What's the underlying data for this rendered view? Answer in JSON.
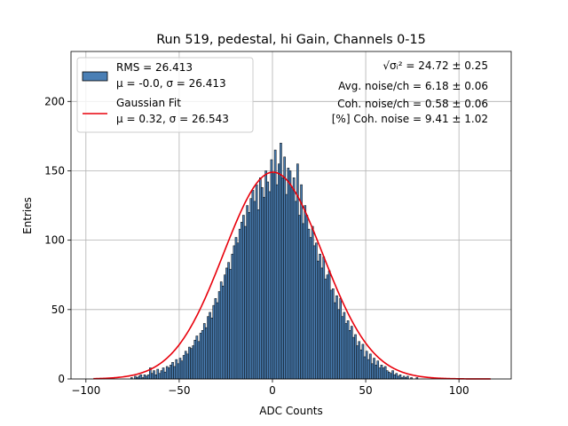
{
  "chart_data": {
    "type": "bar",
    "title": "Run 519, pedestal, hi Gain, Channels 0-15",
    "xlabel": "ADC Counts",
    "ylabel": "Entries",
    "xlim": [
      -108,
      128
    ],
    "ylim": [
      0,
      236
    ],
    "xticks": [
      -100,
      -50,
      0,
      50,
      100
    ],
    "yticks": [
      0,
      50,
      100,
      150,
      200
    ],
    "xtick_labels": [
      "−100",
      "−50",
      "0",
      "50",
      "100"
    ],
    "ytick_labels": [
      "0",
      "50",
      "100",
      "150",
      "200"
    ],
    "grid": true,
    "legend_position": "upper left",
    "bar_color": "#4a7fb5",
    "fit_color": "#e8000b",
    "bins": {
      "start": -96,
      "width": 1,
      "counts": [
        0,
        0,
        0,
        0,
        0,
        0,
        0,
        0,
        0,
        0,
        0,
        0,
        0,
        0,
        0,
        0,
        0,
        0,
        0,
        0,
        1,
        0,
        2,
        1,
        2,
        3,
        1,
        3,
        2,
        3,
        8,
        4,
        6,
        3,
        7,
        4,
        6,
        8,
        5,
        9,
        8,
        10,
        12,
        9,
        14,
        11,
        15,
        13,
        17,
        20,
        18,
        23,
        22,
        24,
        28,
        31,
        27,
        33,
        35,
        40,
        37,
        45,
        48,
        44,
        53,
        58,
        55,
        63,
        70,
        67,
        75,
        80,
        84,
        79,
        90,
        96,
        102,
        98,
        108,
        113,
        118,
        110,
        125,
        120,
        130,
        136,
        128,
        140,
        122,
        145,
        138,
        131,
        150,
        142,
        135,
        158,
        148,
        165,
        140,
        155,
        170,
        145,
        160,
        133,
        152,
        150,
        138,
        145,
        128,
        155,
        118,
        140,
        112,
        125,
        118,
        108,
        102,
        110,
        96,
        98,
        85,
        90,
        80,
        88,
        72,
        75,
        78,
        64,
        65,
        55,
        60,
        50,
        58,
        45,
        48,
        40,
        42,
        35,
        38,
        30,
        32,
        24,
        27,
        21,
        25,
        16,
        20,
        14,
        18,
        11,
        15,
        10,
        13,
        8,
        10,
        8,
        9,
        6,
        5,
        4,
        6,
        3,
        4,
        2,
        3,
        1,
        2,
        1,
        2,
        0,
        1,
        0,
        0,
        1,
        0,
        0,
        0,
        0,
        0,
        0,
        0,
        0,
        0,
        0,
        0,
        0,
        0,
        0,
        0,
        0,
        0,
        0,
        0,
        0,
        0,
        0,
        0,
        0,
        0,
        0,
        0,
        0,
        0,
        0,
        0,
        0,
        0,
        0,
        0,
        0
      ]
    },
    "series": [
      {
        "name": "RMS = 26.413",
        "name_line2": "μ = -0.0, σ = 26.413",
        "kind": "histogram"
      },
      {
        "name": "Gaussian Fit",
        "name_line2": "μ = 0.32, σ = 26.543",
        "kind": "line",
        "fit": {
          "mu": 0.32,
          "sigma": 26.543,
          "amplitude": 149,
          "x_range": [
            -96,
            117
          ]
        }
      }
    ],
    "annotations": [
      {
        "label": "√σᵢ² = 24.72 ± 0.25"
      },
      {
        "label": "Avg. noise/ch = 6.18 ± 0.06"
      },
      {
        "label": "Coh. noise/ch = 0.58 ± 0.06"
      },
      {
        "label": "[%] Coh. noise = 9.41 ± 1.02"
      }
    ]
  }
}
